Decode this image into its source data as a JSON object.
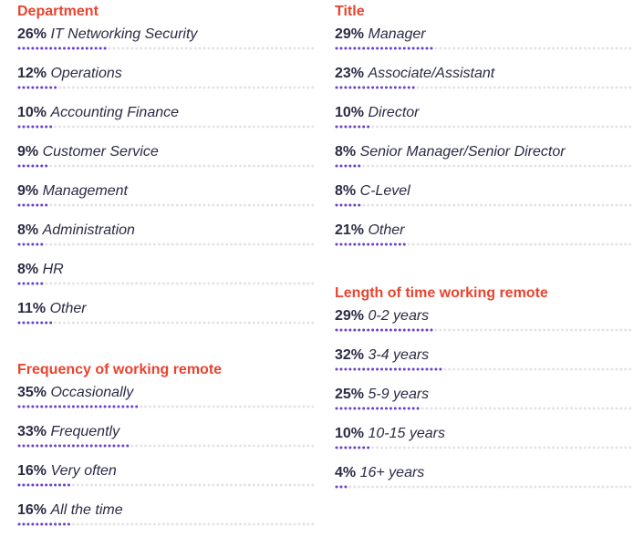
{
  "colors": {
    "title": "#e8442f",
    "text": "#2b2b45",
    "dot_filled": "#6a3fc8",
    "dot_empty": "#e4e4e7"
  },
  "chart_data": [
    {
      "type": "bar",
      "id": "department",
      "title": "Department",
      "categories": [
        "IT Networking Security",
        "Operations",
        "Accounting Finance",
        "Customer Service",
        "Management",
        "Administration",
        "HR",
        "Other"
      ],
      "values": [
        26,
        12,
        10,
        9,
        9,
        8,
        8,
        11
      ],
      "value_labels": [
        "26%",
        "12%",
        "10%",
        "9%",
        "9%",
        "8%",
        "8%",
        "11%"
      ]
    },
    {
      "type": "bar",
      "id": "frequency",
      "title": "Frequency of working remote",
      "categories": [
        "Occasionally",
        "Frequently",
        "Very often",
        "All the time"
      ],
      "values": [
        35,
        33,
        16,
        16
      ],
      "value_labels": [
        "35%",
        "33%",
        "16%",
        "16%"
      ]
    },
    {
      "type": "bar",
      "id": "title",
      "title": "Title",
      "categories": [
        "Manager",
        "Associate/Assistant",
        "Director",
        "Senior Manager/Senior Director",
        "C-Level",
        "Other"
      ],
      "values": [
        29,
        23,
        10,
        8,
        8,
        21
      ],
      "value_labels": [
        "29%",
        "23%",
        "10%",
        "8%",
        "8%",
        "21%"
      ]
    },
    {
      "type": "bar",
      "id": "length",
      "title": "Length of time working remote",
      "categories": [
        "0-2 years",
        "3-4 years",
        "5-9 years",
        "10-15 years",
        "16+ years"
      ],
      "values": [
        29,
        32,
        25,
        10,
        4
      ],
      "value_labels": [
        "29%",
        "32%",
        "25%",
        "10%",
        "4%"
      ]
    }
  ]
}
